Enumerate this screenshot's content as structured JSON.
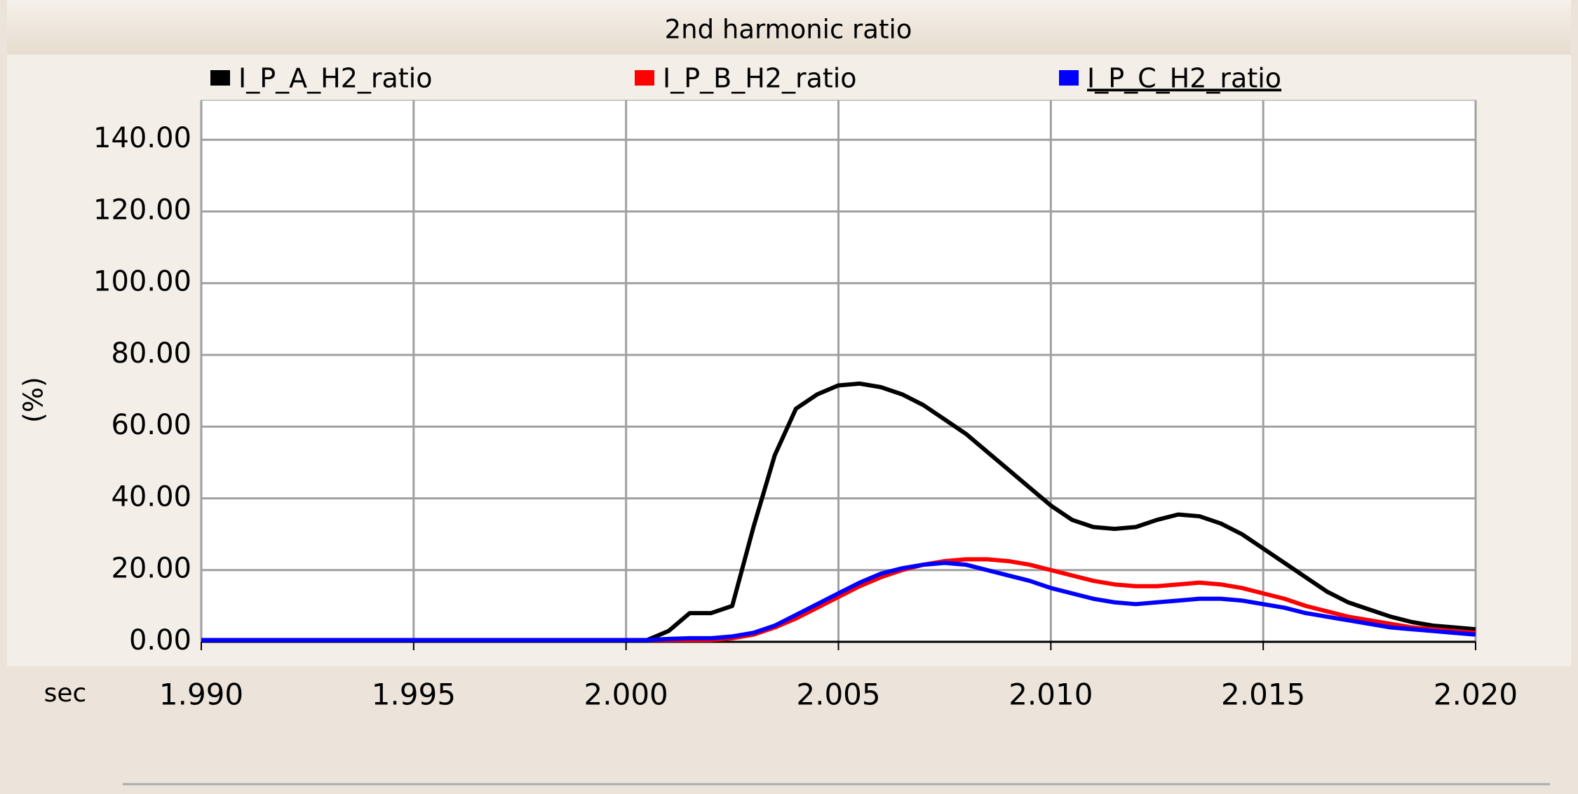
{
  "chart_data": {
    "type": "line",
    "title": "2nd harmonic ratio",
    "y_label": "(%)",
    "x_label": "sec",
    "legend_position": "top",
    "grid": true,
    "x": [
      1.99,
      1.995,
      2.0,
      2.0005,
      2.001,
      2.0015,
      2.002,
      2.0025,
      2.003,
      2.0035,
      2.004,
      2.0045,
      2.005,
      2.0055,
      2.006,
      2.0065,
      2.007,
      2.0075,
      2.008,
      2.0085,
      2.009,
      2.0095,
      2.01,
      2.0105,
      2.011,
      2.0115,
      2.012,
      2.0125,
      2.013,
      2.0135,
      2.014,
      2.0145,
      2.015,
      2.0155,
      2.016,
      2.0165,
      2.017,
      2.0175,
      2.018,
      2.0185,
      2.019,
      2.0195,
      2.02
    ],
    "series": [
      {
        "name": "I_P_A_H2_ratio",
        "color": "#000000",
        "values": [
          0.5,
          0.5,
          0.5,
          0.5,
          3,
          8,
          8,
          10,
          32,
          52,
          65,
          69,
          71.5,
          72,
          71,
          69,
          66,
          62,
          58,
          53,
          48,
          43,
          38,
          34,
          32,
          31.5,
          32,
          34,
          35.5,
          35,
          33,
          30,
          26,
          22,
          18,
          14,
          11,
          9,
          7,
          5.5,
          4.5,
          4,
          3.5
        ]
      },
      {
        "name": "I_P_B_H2_ratio",
        "color": "#ff0000",
        "values": [
          0.5,
          0.5,
          0.5,
          0.5,
          0.5,
          0.5,
          0.5,
          1,
          2,
          4,
          6.5,
          9.5,
          12.5,
          15.5,
          18,
          20,
          21.5,
          22.5,
          23,
          23,
          22.5,
          21.5,
          20,
          18.5,
          17,
          16,
          15.5,
          15.5,
          16,
          16.5,
          16,
          15,
          13.5,
          12,
          10,
          8.5,
          7,
          6,
          5,
          4,
          3.5,
          3,
          2.5
        ]
      },
      {
        "name": "I_P_C_H2_ratio",
        "color": "#0000ff",
        "values": [
          0.5,
          0.5,
          0.5,
          0.5,
          0.8,
          1,
          1,
          1.5,
          2.5,
          4.5,
          7.5,
          10.5,
          13.5,
          16.5,
          19,
          20.5,
          21.5,
          22,
          21.5,
          20,
          18.5,
          17,
          15,
          13.5,
          12,
          11,
          10.5,
          11,
          11.5,
          12,
          12,
          11.5,
          10.5,
          9.5,
          8,
          7,
          6,
          5,
          4,
          3.5,
          3,
          2.5,
          2
        ]
      }
    ],
    "xlim": [
      1.99,
      2.02
    ],
    "xticks": [
      {
        "value": 1.99,
        "label": "1.990"
      },
      {
        "value": 1.995,
        "label": "1.995"
      },
      {
        "value": 2.0,
        "label": "2.000"
      },
      {
        "value": 2.005,
        "label": "2.005"
      },
      {
        "value": 2.01,
        "label": "2.010"
      },
      {
        "value": 2.015,
        "label": "2.015"
      },
      {
        "value": 2.02,
        "label": "2.020"
      }
    ],
    "ylim": [
      0,
      151
    ],
    "yticks": [
      {
        "value": 0,
        "label": "0.00"
      },
      {
        "value": 20,
        "label": "20.00"
      },
      {
        "value": 40,
        "label": "40.00"
      },
      {
        "value": 60,
        "label": "60.00"
      },
      {
        "value": 80,
        "label": "80.00"
      },
      {
        "value": 100,
        "label": "100.00"
      },
      {
        "value": 120,
        "label": "120.00"
      },
      {
        "value": 140,
        "label": "140.00"
      }
    ]
  }
}
